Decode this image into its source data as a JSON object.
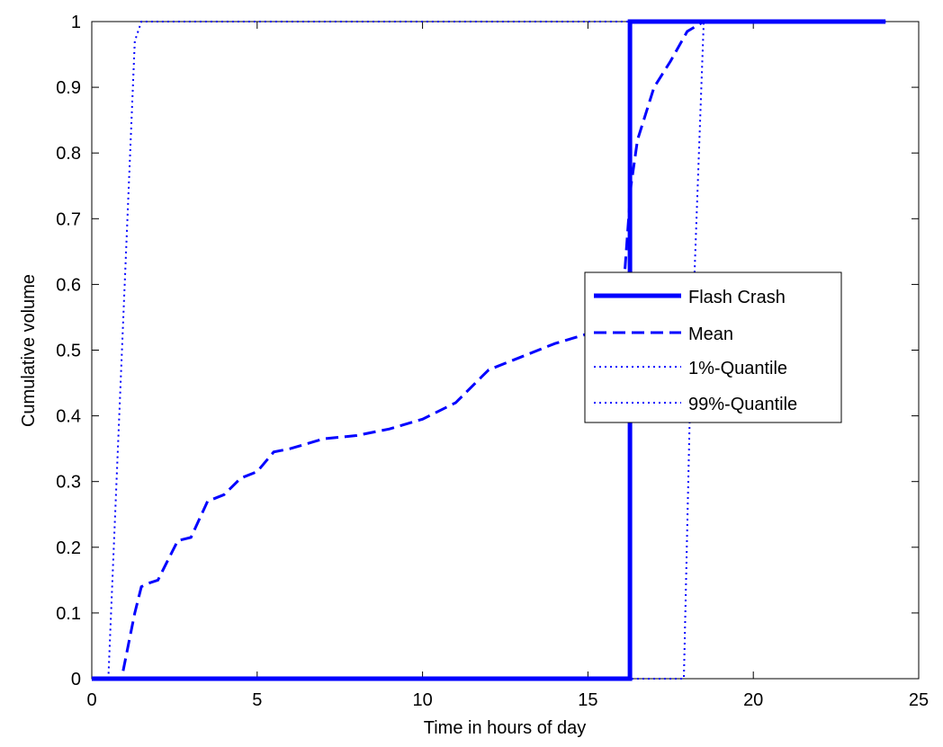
{
  "chart_data": {
    "type": "line",
    "title": "",
    "xlabel": "Time in hours of day",
    "ylabel": "Cumulative volume",
    "xlim": [
      0,
      25
    ],
    "ylim": [
      0,
      1
    ],
    "xticks": [
      0,
      5,
      10,
      15,
      20,
      25
    ],
    "xtick_labels": [
      "0",
      "5",
      "10",
      "15",
      "20",
      "25"
    ],
    "yticks": [
      0,
      0.1,
      0.2,
      0.3,
      0.4,
      0.5,
      0.6,
      0.7,
      0.8,
      0.9,
      1
    ],
    "ytick_labels": [
      "0",
      "0.1",
      "0.2",
      "0.3",
      "0.4",
      "0.5",
      "0.6",
      "0.7",
      "0.8",
      "0.9",
      "1"
    ],
    "grid": false,
    "legend_position": "center-right",
    "color": "#0000ff",
    "series": [
      {
        "name": "Flash Crash",
        "style": "solid",
        "x": [
          0,
          16.27,
          16.27,
          24
        ],
        "y": [
          0,
          0,
          1,
          1
        ]
      },
      {
        "name": "Mean",
        "style": "dashed",
        "x": [
          0,
          0.9,
          1.1,
          1.3,
          1.5,
          1.7,
          2.0,
          2.3,
          2.6,
          3.0,
          3.5,
          4.0,
          4.5,
          5.0,
          5.5,
          6.0,
          7.0,
          8.0,
          9.0,
          10.0,
          11.0,
          12.0,
          13.0,
          14.0,
          15.0,
          16.0,
          16.3,
          16.5,
          17.0,
          17.5,
          18.0,
          18.5,
          19.0,
          20.0,
          21.0,
          22.0,
          23.0,
          24.0
        ],
        "y": [
          0,
          0,
          0.05,
          0.1,
          0.14,
          0.145,
          0.15,
          0.18,
          0.21,
          0.215,
          0.27,
          0.28,
          0.305,
          0.315,
          0.345,
          0.35,
          0.365,
          0.37,
          0.38,
          0.395,
          0.42,
          0.47,
          0.49,
          0.51,
          0.525,
          0.54,
          0.75,
          0.82,
          0.9,
          0.94,
          0.985,
          1.0,
          1.0,
          1.0,
          1.0,
          1.0,
          1.0,
          1.0
        ]
      },
      {
        "name": "1%-Quantile",
        "style": "dotted",
        "x": [
          0,
          0.5,
          1.3,
          1.5,
          24
        ],
        "y": [
          0,
          0,
          0.97,
          1.0,
          1.0
        ]
      },
      {
        "name": "99%-Quantile",
        "style": "dotted",
        "x": [
          0,
          16.3,
          17.9,
          18.1,
          18.5,
          24
        ],
        "y": [
          0,
          0,
          0,
          0.45,
          1.0,
          1.0
        ]
      }
    ]
  }
}
